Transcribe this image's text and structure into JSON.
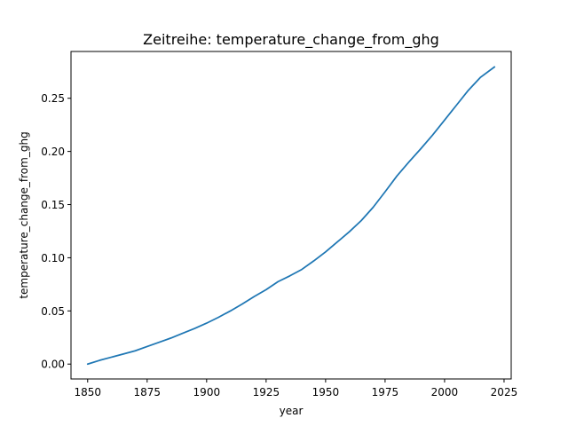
{
  "chart_data": {
    "type": "line",
    "title": "Zeitreihe: temperature_change_from_ghg",
    "xlabel": "year",
    "ylabel": "temperature_change_from_ghg",
    "xlim": [
      1843,
      2028
    ],
    "ylim": [
      -0.014,
      0.294
    ],
    "xticks": [
      1850,
      1875,
      1900,
      1925,
      1950,
      1975,
      2000,
      2025
    ],
    "yticks": [
      0.0,
      0.05,
      0.1,
      0.15,
      0.2,
      0.25
    ],
    "ytick_labels": [
      "0.00",
      "0.05",
      "0.10",
      "0.15",
      "0.20",
      "0.25"
    ],
    "grid": false,
    "color": "#1f77b4",
    "x": [
      1850,
      1855,
      1860,
      1865,
      1870,
      1875,
      1880,
      1885,
      1890,
      1895,
      1900,
      1905,
      1910,
      1915,
      1920,
      1925,
      1930,
      1935,
      1940,
      1945,
      1950,
      1955,
      1960,
      1965,
      1970,
      1975,
      1980,
      1985,
      1990,
      1995,
      2000,
      2005,
      2010,
      2015,
      2021
    ],
    "y": [
      0.0,
      0.0035,
      0.0065,
      0.0095,
      0.0125,
      0.0165,
      0.0205,
      0.0245,
      0.029,
      0.0335,
      0.0385,
      0.044,
      0.05,
      0.0565,
      0.0635,
      0.07,
      0.0775,
      0.083,
      0.089,
      0.097,
      0.1055,
      0.115,
      0.1245,
      0.135,
      0.1475,
      0.162,
      0.177,
      0.19,
      0.2025,
      0.2155,
      0.2295,
      0.2435,
      0.2575,
      0.2695,
      0.2795
    ]
  }
}
